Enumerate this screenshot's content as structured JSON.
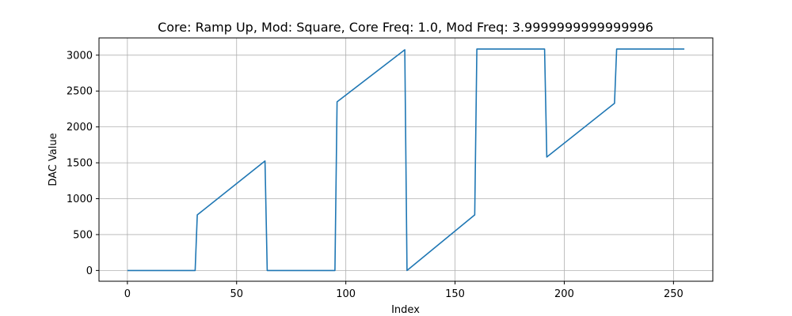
{
  "chart_data": {
    "type": "line",
    "title": "Core: Ramp Up, Mod: Square, Core Freq: 1.0, Mod Freq: 3.9999999999999996",
    "xlabel": "Index",
    "ylabel": "DAC Value",
    "xlim": [
      -13,
      268
    ],
    "ylim": [
      -150,
      3240
    ],
    "xticks": [
      0,
      50,
      100,
      150,
      200,
      250
    ],
    "yticks": [
      0,
      500,
      1000,
      1500,
      2000,
      2500,
      3000
    ],
    "grid": true,
    "series": [
      {
        "color": "#1f77b4",
        "x": [
          0,
          31,
          32,
          63,
          64,
          95,
          96,
          127,
          128,
          159,
          160,
          191,
          192,
          223,
          224,
          255
        ],
        "y": [
          0,
          0,
          775,
          1525,
          0,
          0,
          2350,
          3075,
          0,
          775,
          3085,
          3085,
          1580,
          2330,
          3085,
          3085
        ]
      }
    ]
  }
}
